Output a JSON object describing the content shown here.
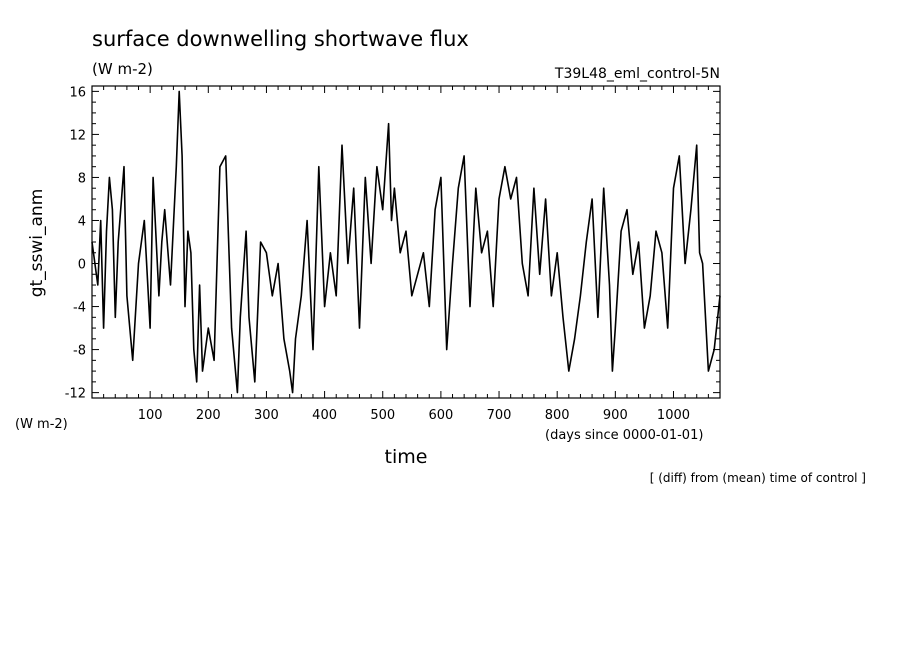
{
  "chart_data": {
    "type": "line",
    "title": "surface downwelling shortwave flux",
    "title_units": "(W m-2)",
    "run_label": "T39L48_eml_control-5N",
    "ylabel": "gt_sswi_anm",
    "ylabel_units": "(W m-2)",
    "xlabel": "time",
    "xlabel_units": "(days since 0000-01-01)",
    "footnote": "[ (diff) from (mean) time of control ]",
    "xlim": [
      0,
      1080
    ],
    "ylim": [
      -12.5,
      16.5
    ],
    "xticks": [
      100,
      200,
      300,
      400,
      500,
      600,
      700,
      800,
      900,
      1000
    ],
    "xticklabels": [
      "100",
      "200",
      "300",
      "400",
      "500",
      "600",
      "700",
      "800",
      "900",
      "1000"
    ],
    "yticks": [
      -12,
      -8,
      -4,
      0,
      4,
      8,
      12,
      16
    ],
    "yticklabels": [
      "-12",
      "-8",
      "-4",
      "0",
      "4",
      "8",
      "12",
      "16"
    ],
    "line_color": "#000000",
    "series": [
      {
        "x": [
          0,
          10,
          15,
          20,
          25,
          30,
          35,
          40,
          45,
          55,
          60,
          70,
          80,
          90,
          100,
          105,
          115,
          120,
          125,
          135,
          145,
          150,
          155,
          160,
          165,
          170,
          175,
          180,
          185,
          190,
          200,
          210,
          220,
          230,
          240,
          250,
          255,
          265,
          270,
          280,
          290,
          300,
          310,
          320,
          330,
          340,
          345,
          350,
          360,
          370,
          380,
          390,
          400,
          410,
          420,
          430,
          440,
          450,
          460,
          470,
          480,
          490,
          500,
          510,
          515,
          520,
          530,
          540,
          550,
          560,
          570,
          580,
          590,
          600,
          610,
          620,
          630,
          640,
          650,
          660,
          670,
          680,
          690,
          700,
          710,
          720,
          730,
          740,
          750,
          760,
          770,
          780,
          790,
          800,
          810,
          820,
          830,
          840,
          850,
          860,
          870,
          880,
          890,
          895,
          900,
          910,
          920,
          930,
          940,
          950,
          960,
          970,
          980,
          990,
          1000,
          1010,
          1020,
          1030,
          1040,
          1045,
          1050,
          1060,
          1070,
          1080
        ],
        "y": [
          2,
          -2,
          4,
          -6,
          3,
          8,
          5,
          -5,
          2,
          9,
          -3,
          -9,
          0,
          4,
          -6,
          8,
          -3,
          2,
          5,
          -2,
          9,
          16,
          10,
          -4,
          3,
          1,
          -8,
          -11,
          -2,
          -10,
          -6,
          -9,
          9,
          10,
          -6,
          -12,
          -5,
          3,
          -5,
          -11,
          2,
          1,
          -3,
          0,
          -7,
          -10,
          -12,
          -7,
          -3,
          4,
          -8,
          9,
          -4,
          1,
          -3,
          11,
          0,
          7,
          -6,
          8,
          0,
          9,
          5,
          13,
          4,
          7,
          1,
          3,
          -3,
          -1,
          1,
          -4,
          5,
          8,
          -8,
          0,
          7,
          10,
          -4,
          7,
          1,
          3,
          -4,
          6,
          9,
          6,
          8,
          0,
          -3,
          7,
          -1,
          6,
          -3,
          1,
          -5,
          -10,
          -7,
          -3,
          2,
          6,
          -5,
          7,
          -2,
          -10,
          -6,
          3,
          5,
          -1,
          2,
          -6,
          -3,
          3,
          1,
          -6,
          7,
          10,
          0,
          5,
          11,
          1,
          0,
          -10,
          -8,
          -3
        ]
      }
    ]
  }
}
